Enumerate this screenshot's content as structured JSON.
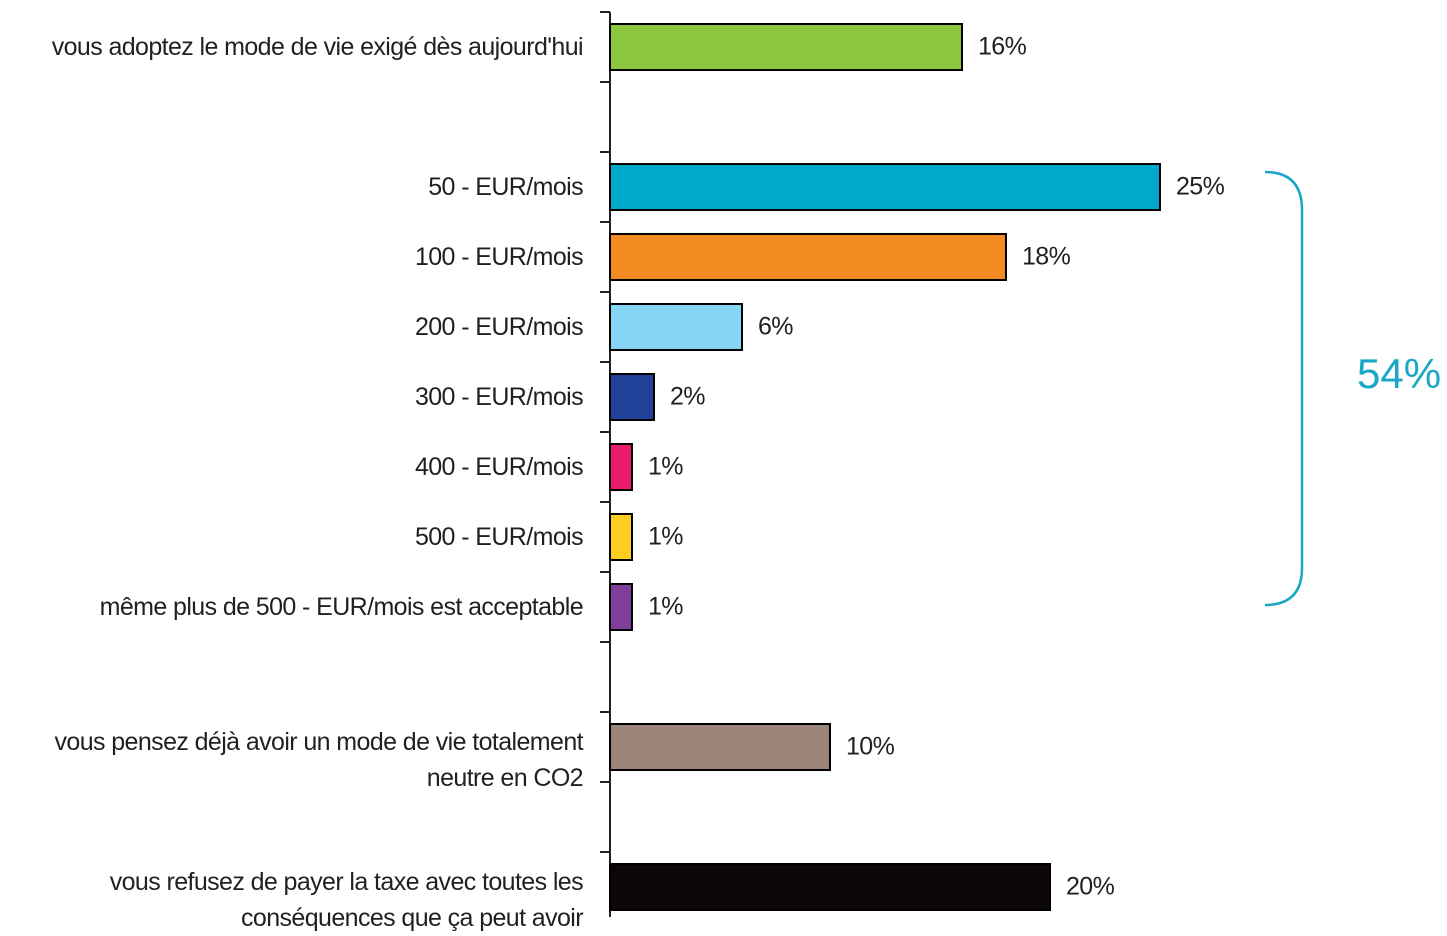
{
  "chart_data": {
    "type": "bar",
    "orientation": "horizontal",
    "categories": [
      "vous adoptez le mode de vie exigé dès aujourd'hui",
      null,
      "50 - EUR/mois",
      "100 - EUR/mois",
      "200 - EUR/mois",
      "300 - EUR/mois",
      "400 - EUR/mois",
      "500 - EUR/mois",
      "même plus de 500 - EUR/mois est acceptable",
      null,
      "vous pensez déjà avoir un mode de vie totalement\nneutre en CO2",
      null,
      "vous refusez de payer la taxe avec toutes les\nconséquences que ça peut avoir"
    ],
    "values": [
      16,
      null,
      25,
      18,
      6,
      2,
      1,
      1,
      1,
      null,
      10,
      null,
      20
    ],
    "value_labels": [
      "16%",
      null,
      "25%",
      "18%",
      "6%",
      "2%",
      "1%",
      "1%",
      "1%",
      null,
      "10%",
      null,
      "20%"
    ],
    "colors": [
      "#8dc63f",
      null,
      "#00a9c9",
      "#f28c22",
      "#83d4f5",
      "#21409a",
      "#ec1c6c",
      "#fdcd1f",
      "#7f3f98",
      null,
      "#9b8579",
      null,
      "#0c0607"
    ],
    "annotation": "54%",
    "annotation_color": "#1aa7c5"
  }
}
